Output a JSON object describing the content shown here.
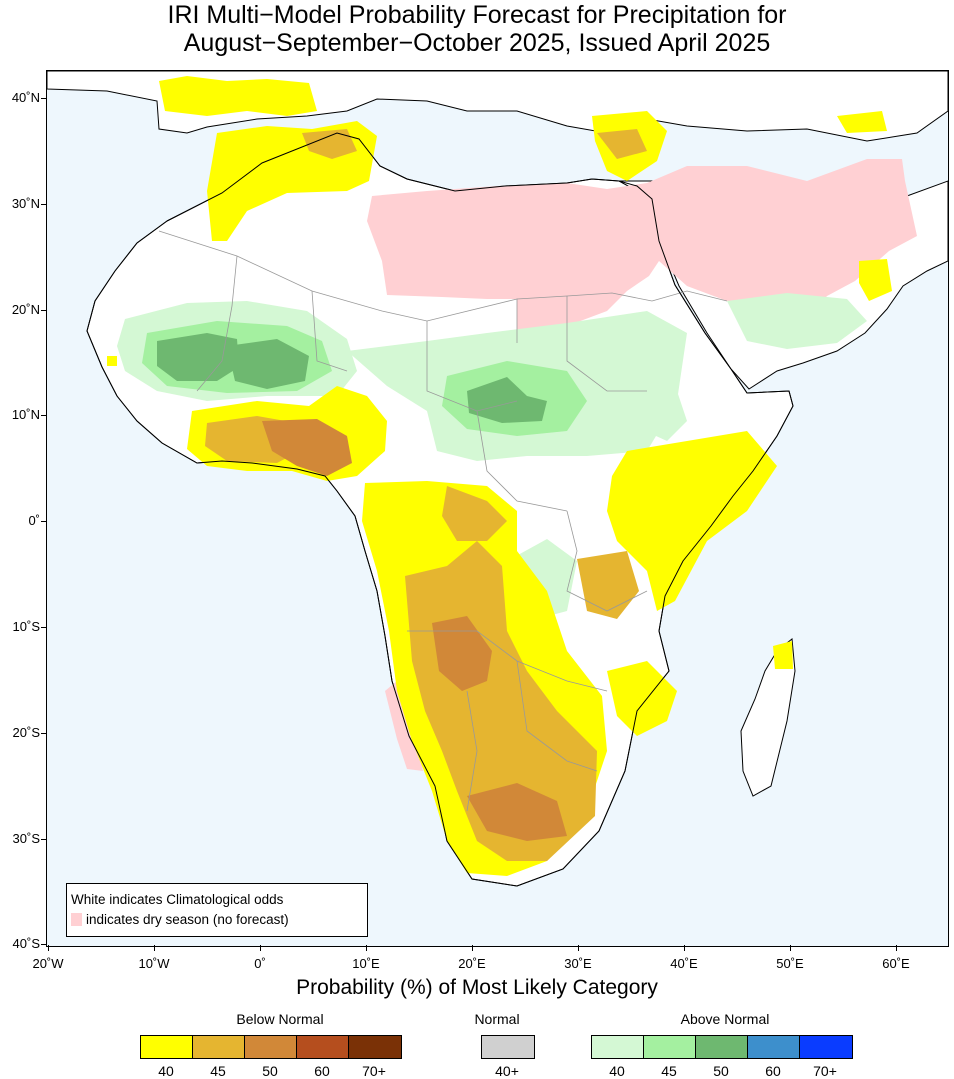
{
  "title": {
    "line1": "IRI Multi−Model Probability Forecast for Precipitation for",
    "line2": "August−September−October 2025, Issued April 2025"
  },
  "map": {
    "lat_ticks": [
      "40˚N",
      "30˚N",
      "20˚N",
      "10˚N",
      "0˚",
      "10˚S",
      "20˚S",
      "30˚S",
      "40˚S"
    ],
    "lon_ticks": [
      "20˚W",
      "10˚W",
      "0˚",
      "10˚E",
      "20˚E",
      "30˚E",
      "40˚E",
      "50˚E",
      "60˚E"
    ],
    "lon_range": [
      -20,
      65
    ],
    "lat_range": [
      -40,
      43
    ],
    "colors": {
      "ocean": "#eef7fd",
      "land": "#ffffff",
      "dry_season": "#ffd0d3"
    }
  },
  "legend_box": {
    "line1": "White indicates Climatological odds",
    "line2": "indicates dry season (no forecast)"
  },
  "colorbar": {
    "title": "Probability (%) of Most Likely Category",
    "below_normal": {
      "label": "Below Normal",
      "colors": [
        "#ffff00",
        "#e5b530",
        "#d18838",
        "#b54e1e",
        "#7a3106"
      ],
      "ticks": [
        "40",
        "45",
        "50",
        "60",
        "70+"
      ]
    },
    "normal": {
      "label": "Normal",
      "colors": [
        "#d0d0d0"
      ],
      "ticks": [
        "40+"
      ]
    },
    "above_normal": {
      "label": "Above Normal",
      "colors": [
        "#d4f8d4",
        "#a4f0a0",
        "#6eb870",
        "#3d8fcc",
        "#0a3cff"
      ],
      "ticks": [
        "40",
        "45",
        "50",
        "60",
        "70+"
      ]
    }
  }
}
